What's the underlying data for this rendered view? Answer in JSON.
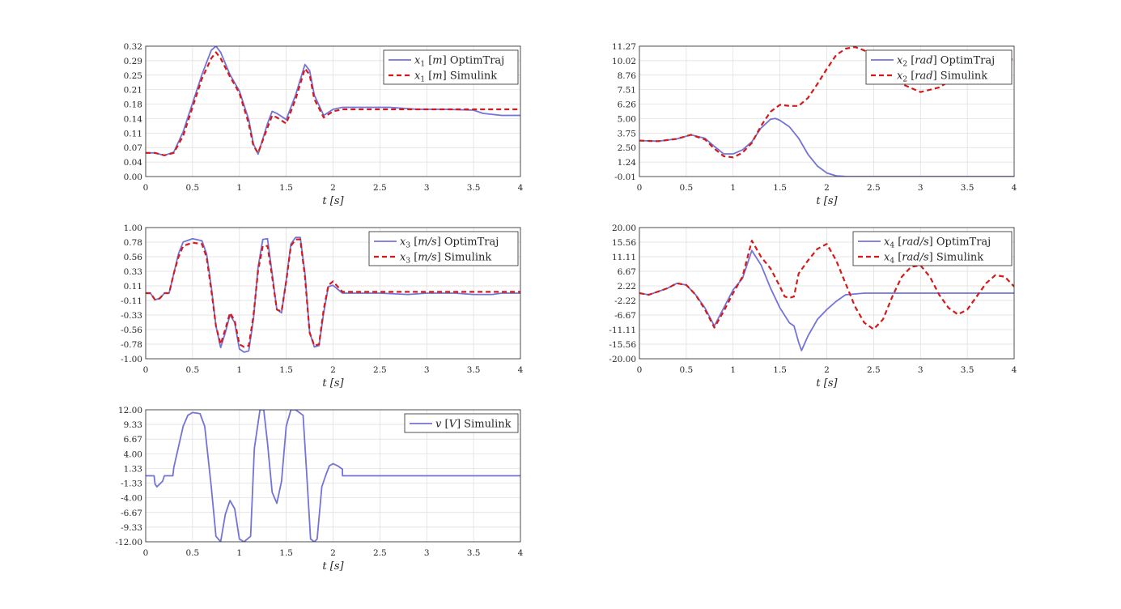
{
  "figure": {
    "background": "#ffffff",
    "colors": {
      "optimtraj": "#7373d9",
      "simulink": "#d41a1a"
    }
  },
  "chart_data": [
    {
      "type": "line",
      "id": "x1",
      "xlabel": "t [s]",
      "xlim": [
        0,
        4
      ],
      "ylim": [
        0.0,
        0.32
      ],
      "xticks": [
        "0",
        "0.5",
        "1",
        "1.5",
        "2",
        "2.5",
        "3",
        "3.5",
        "4"
      ],
      "yticks": [
        "0.00",
        "0.04",
        "0.07",
        "0.11",
        "0.14",
        "0.18",
        "0.21",
        "0.25",
        "0.29",
        "0.32"
      ],
      "grid": true,
      "legend_position": "top-right",
      "series": [
        {
          "name": "x1 [m] OptimTraj",
          "color": "#7373d9",
          "style": "solid",
          "x": [
            0,
            0.1,
            0.2,
            0.3,
            0.4,
            0.5,
            0.6,
            0.7,
            0.75,
            0.8,
            0.9,
            1.0,
            1.1,
            1.15,
            1.2,
            1.3,
            1.35,
            1.4,
            1.5,
            1.6,
            1.7,
            1.75,
            1.8,
            1.9,
            2.0,
            2.1,
            2.3,
            2.6,
            2.9,
            3.2,
            3.5,
            3.6,
            3.8,
            4.0
          ],
          "y": [
            0.058,
            0.058,
            0.052,
            0.06,
            0.11,
            0.18,
            0.25,
            0.31,
            0.32,
            0.305,
            0.25,
            0.21,
            0.14,
            0.08,
            0.055,
            0.13,
            0.16,
            0.155,
            0.14,
            0.2,
            0.275,
            0.26,
            0.2,
            0.15,
            0.165,
            0.17,
            0.17,
            0.17,
            0.165,
            0.165,
            0.163,
            0.155,
            0.15,
            0.15
          ]
        },
        {
          "name": "x1 [m] Simulink",
          "color": "#d41a1a",
          "style": "dashed",
          "x": [
            0,
            0.1,
            0.2,
            0.3,
            0.4,
            0.5,
            0.6,
            0.7,
            0.75,
            0.8,
            0.9,
            1.0,
            1.1,
            1.15,
            1.2,
            1.3,
            1.35,
            1.4,
            1.5,
            1.6,
            1.7,
            1.75,
            1.8,
            1.9,
            2.0,
            2.1,
            2.5,
            3.0,
            3.5,
            4.0
          ],
          "y": [
            0.058,
            0.058,
            0.052,
            0.058,
            0.1,
            0.17,
            0.24,
            0.29,
            0.305,
            0.29,
            0.245,
            0.205,
            0.13,
            0.075,
            0.058,
            0.12,
            0.15,
            0.145,
            0.13,
            0.19,
            0.265,
            0.25,
            0.19,
            0.145,
            0.16,
            0.165,
            0.165,
            0.165,
            0.165,
            0.165
          ]
        }
      ]
    },
    {
      "type": "line",
      "id": "x2",
      "xlabel": "t [s]",
      "xlim": [
        0,
        4
      ],
      "ylim": [
        -0.01,
        11.27
      ],
      "xticks": [
        "0",
        "0.5",
        "1",
        "1.5",
        "2",
        "2.5",
        "3",
        "3.5",
        "4"
      ],
      "yticks": [
        "-0.01",
        "1.24",
        "2.50",
        "3.75",
        "5.00",
        "6.26",
        "7.51",
        "8.76",
        "10.02",
        "11.27"
      ],
      "grid": true,
      "legend_position": "top-right",
      "series": [
        {
          "name": "x2 [rad] OptimTraj",
          "color": "#7373d9",
          "style": "solid",
          "x": [
            0,
            0.2,
            0.4,
            0.55,
            0.7,
            0.8,
            0.9,
            1.0,
            1.1,
            1.2,
            1.3,
            1.4,
            1.45,
            1.5,
            1.6,
            1.7,
            1.8,
            1.9,
            2.0,
            2.1,
            2.2,
            2.5,
            3.0,
            3.5,
            4.0
          ],
          "y": [
            3.1,
            3.05,
            3.25,
            3.6,
            3.3,
            2.6,
            1.95,
            1.95,
            2.3,
            3.0,
            4.2,
            4.95,
            5.02,
            4.85,
            4.3,
            3.3,
            1.9,
            0.9,
            0.3,
            0.05,
            0.0,
            -0.01,
            -0.01,
            -0.01,
            -0.01
          ]
        },
        {
          "name": "x2 [rad] Simulink",
          "color": "#d41a1a",
          "style": "dashed",
          "x": [
            0,
            0.2,
            0.4,
            0.55,
            0.7,
            0.8,
            0.9,
            1.0,
            1.1,
            1.2,
            1.3,
            1.4,
            1.5,
            1.6,
            1.7,
            1.8,
            1.9,
            2.0,
            2.1,
            2.2,
            2.3,
            2.4,
            2.6,
            2.8,
            3.0,
            3.2,
            3.4,
            3.6,
            3.8,
            4.0
          ],
          "y": [
            3.1,
            3.05,
            3.25,
            3.6,
            3.2,
            2.4,
            1.75,
            1.65,
            2.05,
            2.9,
            4.4,
            5.6,
            6.2,
            6.1,
            6.1,
            6.8,
            8.0,
            9.3,
            10.5,
            11.05,
            11.2,
            10.9,
            9.5,
            8.0,
            7.3,
            7.7,
            8.7,
            9.7,
            10.3,
            10.1
          ]
        }
      ]
    },
    {
      "type": "line",
      "id": "x3",
      "xlabel": "t [s]",
      "xlim": [
        0,
        4
      ],
      "ylim": [
        -1.0,
        1.0
      ],
      "xticks": [
        "0",
        "0.5",
        "1",
        "1.5",
        "2",
        "2.5",
        "3",
        "3.5",
        "4"
      ],
      "yticks": [
        "-1.00",
        "-0.78",
        "-0.56",
        "-0.33",
        "-0.11",
        "0.11",
        "0.33",
        "0.56",
        "0.78",
        "1.00"
      ],
      "grid": true,
      "legend_position": "top-right",
      "series": [
        {
          "name": "x3 [m/s] OptimTraj",
          "color": "#7373d9",
          "style": "solid",
          "x": [
            0,
            0.05,
            0.1,
            0.15,
            0.2,
            0.25,
            0.3,
            0.35,
            0.4,
            0.5,
            0.6,
            0.65,
            0.7,
            0.75,
            0.8,
            0.85,
            0.9,
            0.95,
            1.0,
            1.05,
            1.1,
            1.15,
            1.2,
            1.25,
            1.3,
            1.35,
            1.4,
            1.45,
            1.5,
            1.55,
            1.6,
            1.65,
            1.7,
            1.75,
            1.8,
            1.85,
            1.9,
            1.95,
            2.0,
            2.1,
            2.3,
            2.5,
            2.8,
            3.0,
            3.3,
            3.5,
            3.7,
            3.8,
            4.0
          ],
          "y": [
            0.0,
            0.0,
            -0.1,
            -0.08,
            0.0,
            0.0,
            0.3,
            0.6,
            0.78,
            0.83,
            0.8,
            0.6,
            0.1,
            -0.5,
            -0.83,
            -0.6,
            -0.33,
            -0.45,
            -0.85,
            -0.9,
            -0.88,
            -0.4,
            0.4,
            0.82,
            0.83,
            0.3,
            -0.25,
            -0.3,
            0.2,
            0.75,
            0.85,
            0.85,
            0.3,
            -0.6,
            -0.82,
            -0.8,
            -0.3,
            0.1,
            0.12,
            0.0,
            0.0,
            0.0,
            -0.02,
            0.0,
            0.0,
            -0.02,
            -0.02,
            0.0,
            0.0
          ]
        },
        {
          "name": "x3 [m/s] Simulink",
          "color": "#d41a1a",
          "style": "dashed",
          "x": [
            0,
            0.05,
            0.1,
            0.15,
            0.2,
            0.25,
            0.3,
            0.35,
            0.4,
            0.5,
            0.6,
            0.65,
            0.7,
            0.75,
            0.8,
            0.85,
            0.9,
            0.95,
            1.0,
            1.05,
            1.1,
            1.15,
            1.2,
            1.25,
            1.3,
            1.35,
            1.4,
            1.45,
            1.5,
            1.55,
            1.6,
            1.65,
            1.7,
            1.75,
            1.8,
            1.85,
            1.9,
            1.95,
            2.0,
            2.1,
            2.5,
            3.0,
            3.5,
            4.0
          ],
          "y": [
            0.0,
            0.0,
            -0.1,
            -0.08,
            0.0,
            0.0,
            0.3,
            0.55,
            0.72,
            0.77,
            0.75,
            0.55,
            0.05,
            -0.5,
            -0.78,
            -0.55,
            -0.3,
            -0.42,
            -0.78,
            -0.82,
            -0.8,
            -0.35,
            0.35,
            0.72,
            0.72,
            0.25,
            -0.25,
            -0.28,
            0.18,
            0.72,
            0.82,
            0.82,
            0.25,
            -0.6,
            -0.8,
            -0.78,
            -0.25,
            0.12,
            0.18,
            0.02,
            0.02,
            0.02,
            0.02,
            0.02
          ]
        }
      ]
    },
    {
      "type": "line",
      "id": "x4",
      "xlabel": "t [s]",
      "xlim": [
        0,
        4
      ],
      "ylim": [
        -20.0,
        20.0
      ],
      "xticks": [
        "0",
        "0.5",
        "1",
        "1.5",
        "2",
        "2.5",
        "3",
        "3.5",
        "4"
      ],
      "yticks": [
        "-20.00",
        "-15.56",
        "-11.11",
        "-6.67",
        "-2.22",
        "2.22",
        "6.67",
        "11.11",
        "15.56",
        "20.00"
      ],
      "grid": true,
      "legend_position": "top-right",
      "series": [
        {
          "name": "x4 [rad/s] OptimTraj",
          "color": "#7373d9",
          "style": "solid",
          "x": [
            0,
            0.1,
            0.2,
            0.3,
            0.4,
            0.5,
            0.6,
            0.7,
            0.8,
            0.9,
            1.0,
            1.1,
            1.2,
            1.3,
            1.4,
            1.5,
            1.6,
            1.65,
            1.7,
            1.73,
            1.8,
            1.9,
            2.0,
            2.1,
            2.2,
            2.4,
            2.6,
            3.0,
            3.4,
            4.0
          ],
          "y": [
            0.0,
            -0.5,
            0.5,
            1.5,
            3.0,
            2.5,
            -0.5,
            -4.5,
            -10.0,
            -4.5,
            1.0,
            4.5,
            13.0,
            8.5,
            1.5,
            -4.5,
            -9.0,
            -10.0,
            -15.0,
            -17.5,
            -13.0,
            -8.0,
            -5.0,
            -2.5,
            -0.5,
            0.0,
            0.0,
            0.0,
            0.0,
            0.0
          ]
        },
        {
          "name": "x4 [rad/s] Simulink",
          "color": "#d41a1a",
          "style": "dashed",
          "x": [
            0,
            0.1,
            0.2,
            0.3,
            0.4,
            0.5,
            0.6,
            0.7,
            0.8,
            0.9,
            1.0,
            1.1,
            1.2,
            1.3,
            1.4,
            1.5,
            1.55,
            1.6,
            1.65,
            1.7,
            1.8,
            1.9,
            2.0,
            2.1,
            2.2,
            2.3,
            2.4,
            2.5,
            2.6,
            2.7,
            2.8,
            2.9,
            3.0,
            3.1,
            3.2,
            3.3,
            3.4,
            3.5,
            3.6,
            3.7,
            3.8,
            3.9,
            4.0
          ],
          "y": [
            0.0,
            -0.5,
            0.5,
            1.5,
            3.0,
            2.5,
            -0.5,
            -5.0,
            -10.5,
            -5.5,
            0.0,
            5.0,
            16.0,
            11.0,
            7.5,
            2.0,
            -1.0,
            -1.5,
            -1.0,
            6.0,
            10.0,
            13.5,
            15.0,
            10.0,
            3.0,
            -4.0,
            -9.0,
            -11.0,
            -8.0,
            -1.0,
            5.0,
            8.0,
            8.5,
            5.0,
            -0.5,
            -4.5,
            -6.5,
            -5.0,
            -1.0,
            3.0,
            5.5,
            5.0,
            2.0
          ]
        }
      ]
    },
    {
      "type": "line",
      "id": "v",
      "xlabel": "t [s]",
      "xlim": [
        0,
        4
      ],
      "ylim": [
        -12.0,
        12.0
      ],
      "xticks": [
        "0",
        "0.5",
        "1",
        "1.5",
        "2",
        "2.5",
        "3",
        "3.5",
        "4"
      ],
      "yticks": [
        "-12.00",
        "-9.33",
        "-6.67",
        "-4.00",
        "-1.33",
        "1.33",
        "4.00",
        "6.67",
        "9.33",
        "12.00"
      ],
      "grid": true,
      "legend_position": "top-right",
      "series": [
        {
          "name": "v [V] Simulink",
          "color": "#7373d9",
          "style": "solid",
          "x": [
            0,
            0.09,
            0.1,
            0.12,
            0.18,
            0.2,
            0.29,
            0.3,
            0.4,
            0.45,
            0.5,
            0.58,
            0.63,
            0.7,
            0.75,
            0.8,
            0.85,
            0.9,
            0.95,
            1.0,
            1.05,
            1.12,
            1.16,
            1.22,
            1.26,
            1.3,
            1.35,
            1.4,
            1.45,
            1.5,
            1.55,
            1.6,
            1.68,
            1.72,
            1.76,
            1.8,
            1.83,
            1.88,
            1.92,
            1.96,
            2.0,
            2.05,
            2.1,
            2.101,
            4.0
          ],
          "y": [
            0.0,
            0.0,
            -1.5,
            -2.0,
            -1.0,
            0.0,
            0.0,
            1.5,
            9.0,
            11.0,
            11.5,
            11.3,
            9.0,
            -2.0,
            -11.0,
            -12.0,
            -7.0,
            -4.5,
            -6.0,
            -11.5,
            -12.0,
            -11.0,
            5.0,
            12.0,
            12.0,
            6.0,
            -3.0,
            -5.0,
            -1.0,
            9.0,
            12.0,
            12.0,
            11.0,
            0.0,
            -11.5,
            -12.0,
            -11.5,
            -2.0,
            0.0,
            1.8,
            2.2,
            1.8,
            1.2,
            0.0,
            0.0
          ]
        }
      ]
    }
  ]
}
